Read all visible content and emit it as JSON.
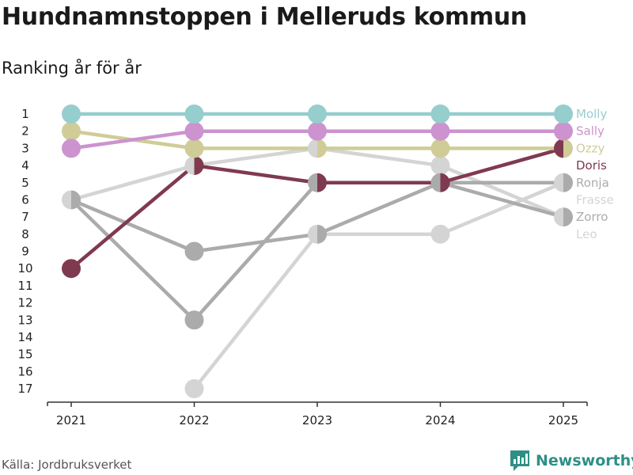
{
  "header": {
    "title": "Hundnamnstoppen i Melleruds kommun",
    "subtitle": "Ranking år för år"
  },
  "footer": {
    "source": "Källa: Jordbruksverket",
    "brand": "Newsworthy",
    "brand_icon": "bar-chart-icon"
  },
  "colors": {
    "brand": "#2e8f86",
    "axis": "#333333"
  },
  "chart_data": {
    "type": "line",
    "title": "Hundnamnstoppen i Melleruds kommun",
    "subtitle": "Ranking år för år",
    "xlabel": "",
    "ylabel": "",
    "x": [
      "2021",
      "2022",
      "2023",
      "2024",
      "2025"
    ],
    "ylim": [
      17,
      1
    ],
    "yticks": [
      "1",
      "2",
      "3",
      "4",
      "5",
      "6",
      "7",
      "8",
      "9",
      "10",
      "11",
      "12",
      "13",
      "14",
      "15",
      "16",
      "17"
    ],
    "series": [
      {
        "name": "Leo",
        "color": "#d4d4d4",
        "values": [
          6,
          4,
          3,
          4,
          7
        ]
      },
      {
        "name": "Frasse",
        "color": "#d4d4d4",
        "values": [
          null,
          17,
          8,
          8,
          5
        ]
      },
      {
        "name": "Zorro",
        "color": "#ababab",
        "values": [
          6,
          9,
          8,
          5,
          7
        ]
      },
      {
        "name": "Ronja",
        "color": "#ababab",
        "values": [
          6,
          13,
          5,
          5,
          5
        ]
      },
      {
        "name": "Doris",
        "color": "#7f3a50",
        "values": [
          10,
          4,
          5,
          5,
          3
        ]
      },
      {
        "name": "Ozzy",
        "color": "#cfcc97",
        "values": [
          2,
          3,
          3,
          3,
          3
        ]
      },
      {
        "name": "Sally",
        "color": "#cc93cf",
        "values": [
          3,
          2,
          2,
          2,
          2
        ]
      },
      {
        "name": "Molly",
        "color": "#96cdcd",
        "values": [
          1,
          1,
          1,
          1,
          1
        ]
      }
    ],
    "legend": [
      {
        "name": "Molly",
        "color": "#96cdcd"
      },
      {
        "name": "Sally",
        "color": "#cc93cf"
      },
      {
        "name": "Ozzy",
        "color": "#cfcc97"
      },
      {
        "name": "Doris",
        "color": "#7f3a50"
      },
      {
        "name": "Ronja",
        "color": "#ababab"
      },
      {
        "name": "Frasse",
        "color": "#d4d4d4"
      },
      {
        "name": "Zorro",
        "color": "#ababab"
      },
      {
        "name": "Leo",
        "color": "#d4d4d4"
      }
    ]
  }
}
